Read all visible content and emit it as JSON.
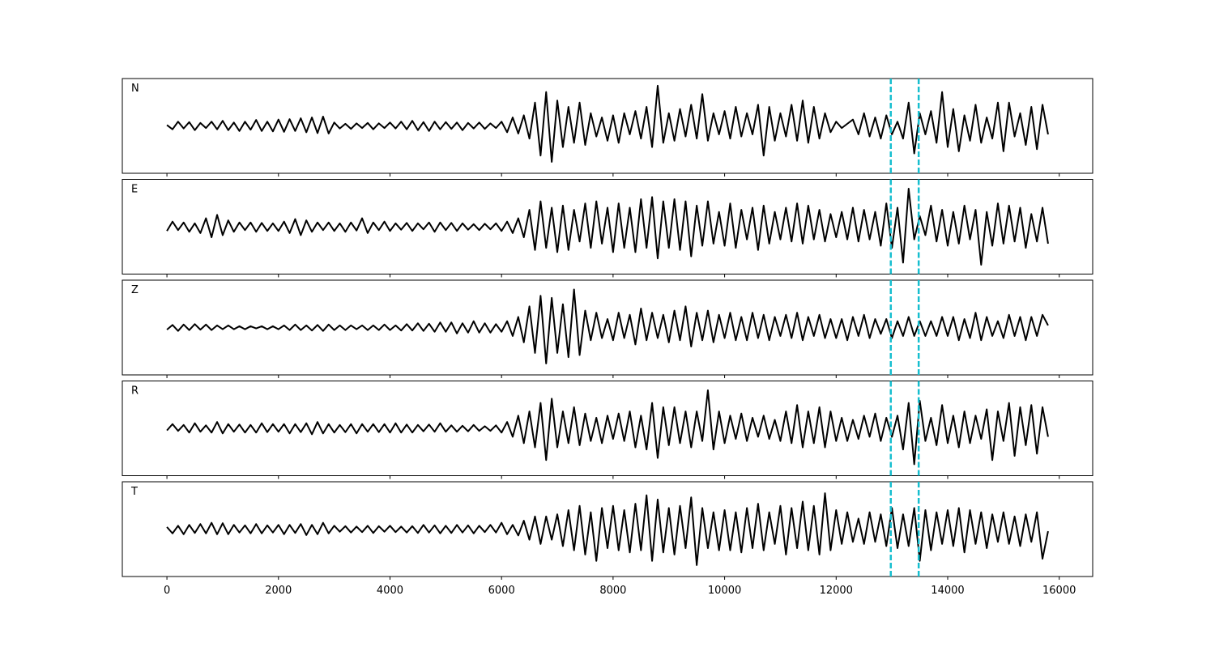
{
  "chart_data": {
    "type": "line",
    "layout": "stacked",
    "line_color": "#000000",
    "xlim": [
      -800,
      16600
    ],
    "xticks": [
      0,
      2000,
      4000,
      6000,
      8000,
      10000,
      12000,
      14000,
      16000
    ],
    "ylim": [
      -1.1,
      1.1
    ],
    "vlines": [
      12980,
      13480
    ],
    "vline_color": "#17becf",
    "vline_style": "dashed",
    "x": [
      0,
      100,
      200,
      300,
      400,
      500,
      600,
      700,
      800,
      900,
      1000,
      1100,
      1200,
      1300,
      1400,
      1500,
      1600,
      1700,
      1800,
      1900,
      2000,
      2100,
      2200,
      2300,
      2400,
      2500,
      2600,
      2700,
      2800,
      2900,
      3000,
      3100,
      3200,
      3300,
      3400,
      3500,
      3600,
      3700,
      3800,
      3900,
      4000,
      4100,
      4200,
      4300,
      4400,
      4500,
      4600,
      4700,
      4800,
      4900,
      5000,
      5100,
      5200,
      5300,
      5400,
      5500,
      5600,
      5700,
      5800,
      5900,
      6000,
      6100,
      6200,
      6300,
      6400,
      6500,
      6600,
      6700,
      6800,
      6900,
      7000,
      7100,
      7200,
      7300,
      7400,
      7500,
      7600,
      7700,
      7800,
      7900,
      8000,
      8100,
      8200,
      8300,
      8400,
      8500,
      8600,
      8700,
      8800,
      8900,
      9000,
      9100,
      9200,
      9300,
      9400,
      9500,
      9600,
      9700,
      9800,
      9900,
      10000,
      10100,
      10200,
      10300,
      10400,
      10500,
      10600,
      10700,
      10800,
      10900,
      11000,
      11100,
      11200,
      11300,
      11400,
      11500,
      11600,
      11700,
      11800,
      11900,
      12000,
      12100,
      12200,
      12300,
      12400,
      12500,
      12600,
      12700,
      12800,
      12900,
      13000,
      13100,
      13200,
      13300,
      13400,
      13500,
      13600,
      13700,
      13800,
      13900,
      14000,
      14100,
      14200,
      14300,
      14400,
      14500,
      14600,
      14700,
      14800,
      14900,
      15000,
      15100,
      15200,
      15300,
      15400,
      15500,
      15600,
      15700,
      15800
    ],
    "series": [
      {
        "name": "N",
        "values": [
          0.02,
          -0.08,
          0.1,
          -0.06,
          0.09,
          -0.1,
          0.07,
          -0.05,
          0.1,
          -0.08,
          0.12,
          -0.1,
          0.08,
          -0.12,
          0.1,
          -0.09,
          0.14,
          -0.12,
          0.1,
          -0.13,
          0.15,
          -0.14,
          0.16,
          -0.12,
          0.18,
          -0.15,
          0.2,
          -0.17,
          0.22,
          -0.18,
          0.08,
          -0.06,
          0.05,
          -0.07,
          0.06,
          -0.05,
          0.07,
          -0.08,
          0.06,
          -0.05,
          0.08,
          -0.06,
          0.1,
          -0.08,
          0.12,
          -0.1,
          0.09,
          -0.12,
          0.1,
          -0.08,
          0.09,
          -0.07,
          0.08,
          -0.1,
          0.07,
          -0.06,
          0.08,
          -0.07,
          0.06,
          -0.05,
          0.1,
          -0.15,
          0.2,
          -0.18,
          0.25,
          -0.3,
          0.55,
          -0.7,
          0.8,
          -0.85,
          0.6,
          -0.5,
          0.45,
          -0.4,
          0.55,
          -0.45,
          0.3,
          -0.25,
          0.2,
          -0.35,
          0.25,
          -0.4,
          0.3,
          -0.2,
          0.35,
          -0.3,
          0.45,
          -0.5,
          0.95,
          -0.4,
          0.3,
          -0.35,
          0.4,
          -0.25,
          0.5,
          -0.3,
          0.75,
          -0.35,
          0.3,
          -0.2,
          0.35,
          -0.3,
          0.45,
          -0.25,
          0.3,
          -0.2,
          0.5,
          -0.7,
          0.45,
          -0.35,
          0.3,
          -0.25,
          0.5,
          -0.35,
          0.6,
          -0.4,
          0.45,
          -0.3,
          0.3,
          -0.15,
          0.1,
          -0.05,
          0.05,
          0.15,
          -0.2,
          0.3,
          -0.25,
          0.2,
          -0.3,
          0.25,
          -0.2,
          0.1,
          -0.3,
          0.55,
          -0.65,
          0.3,
          -0.2,
          0.35,
          -0.4,
          0.8,
          -0.5,
          0.4,
          -0.6,
          0.25,
          -0.35,
          0.5,
          -0.4,
          0.2,
          -0.3,
          0.55,
          -0.6,
          0.55,
          -0.25,
          0.3,
          -0.45,
          0.45,
          -0.55,
          0.5,
          -0.2
        ]
      },
      {
        "name": "E",
        "values": [
          -0.1,
          0.12,
          -0.08,
          0.1,
          -0.12,
          0.08,
          -0.15,
          0.2,
          -0.25,
          0.28,
          -0.2,
          0.15,
          -0.12,
          0.1,
          -0.08,
          0.1,
          -0.12,
          0.09,
          -0.1,
          0.08,
          -0.1,
          0.12,
          -0.15,
          0.18,
          -0.2,
          0.15,
          -0.12,
          0.1,
          -0.08,
          0.1,
          -0.1,
          0.08,
          -0.12,
          0.1,
          -0.09,
          0.2,
          -0.15,
          0.1,
          -0.08,
          0.12,
          -0.1,
          0.08,
          -0.07,
          0.09,
          -0.1,
          0.08,
          -0.06,
          0.1,
          -0.12,
          0.1,
          -0.08,
          0.09,
          -0.1,
          0.08,
          -0.07,
          0.06,
          -0.08,
          0.07,
          -0.06,
          0.08,
          -0.1,
          0.12,
          -0.15,
          0.2,
          -0.25,
          0.4,
          -0.55,
          0.6,
          -0.5,
          0.45,
          -0.6,
          0.5,
          -0.55,
          0.4,
          -0.35,
          0.55,
          -0.5,
          0.6,
          -0.4,
          0.45,
          -0.6,
          0.55,
          -0.5,
          0.45,
          -0.6,
          0.65,
          -0.5,
          0.7,
          -0.75,
          0.6,
          -0.5,
          0.65,
          -0.55,
          0.6,
          -0.7,
          0.5,
          -0.45,
          0.6,
          -0.4,
          0.35,
          -0.45,
          0.55,
          -0.5,
          0.4,
          -0.3,
          0.45,
          -0.55,
          0.5,
          -0.4,
          0.35,
          -0.3,
          0.45,
          -0.35,
          0.55,
          -0.4,
          0.5,
          -0.3,
          0.4,
          -0.35,
          0.3,
          -0.25,
          0.35,
          -0.3,
          0.45,
          -0.35,
          0.4,
          -0.3,
          0.35,
          -0.45,
          0.55,
          -0.5,
          0.45,
          -0.85,
          0.9,
          -0.3,
          0.25,
          -0.2,
          0.5,
          -0.35,
          0.4,
          -0.45,
          0.35,
          -0.4,
          0.5,
          -0.3,
          0.4,
          -0.9,
          0.35,
          -0.45,
          0.55,
          -0.4,
          0.5,
          -0.35,
          0.45,
          -0.5,
          0.3,
          -0.35,
          0.45,
          -0.4
        ]
      },
      {
        "name": "Z",
        "values": [
          -0.05,
          0.06,
          -0.08,
          0.07,
          -0.06,
          0.08,
          -0.05,
          0.07,
          -0.06,
          0.05,
          -0.04,
          0.05,
          -0.04,
          0.03,
          -0.04,
          0.03,
          -0.02,
          0.03,
          -0.04,
          0.03,
          -0.04,
          0.05,
          -0.06,
          0.07,
          -0.06,
          0.05,
          -0.07,
          0.06,
          -0.08,
          0.07,
          -0.06,
          0.05,
          -0.06,
          0.05,
          -0.04,
          0.05,
          -0.06,
          0.05,
          -0.06,
          0.07,
          -0.06,
          0.05,
          -0.07,
          0.08,
          -0.07,
          0.1,
          -0.08,
          0.09,
          -0.1,
          0.12,
          -0.1,
          0.12,
          -0.14,
          0.1,
          -0.12,
          0.15,
          -0.12,
          0.1,
          -0.12,
          0.08,
          -0.1,
          0.15,
          -0.2,
          0.25,
          -0.35,
          0.5,
          -0.6,
          0.75,
          -0.85,
          0.7,
          -0.6,
          0.55,
          -0.7,
          0.9,
          -0.65,
          0.4,
          -0.3,
          0.35,
          -0.25,
          0.2,
          -0.3,
          0.35,
          -0.25,
          0.3,
          -0.4,
          0.45,
          -0.3,
          0.35,
          -0.25,
          0.3,
          -0.35,
          0.4,
          -0.3,
          0.5,
          -0.45,
          0.35,
          -0.3,
          0.4,
          -0.35,
          0.3,
          -0.25,
          0.35,
          -0.3,
          0.25,
          -0.3,
          0.35,
          -0.25,
          0.3,
          -0.3,
          0.25,
          -0.2,
          0.3,
          -0.25,
          0.35,
          -0.3,
          0.25,
          -0.2,
          0.3,
          -0.25,
          0.2,
          -0.25,
          0.2,
          -0.3,
          0.25,
          -0.2,
          0.3,
          -0.25,
          0.2,
          -0.15,
          0.2,
          -0.25,
          0.15,
          -0.2,
          0.25,
          -0.2,
          0.15,
          -0.2,
          0.15,
          -0.2,
          0.25,
          -0.2,
          0.25,
          -0.3,
          0.2,
          -0.25,
          0.35,
          -0.3,
          0.25,
          -0.2,
          0.15,
          -0.25,
          0.3,
          -0.2,
          0.25,
          -0.3,
          0.25,
          -0.2,
          0.3,
          0.05
        ]
      },
      {
        "name": "R",
        "values": [
          -0.05,
          0.1,
          -0.06,
          0.08,
          -0.1,
          0.12,
          -0.08,
          0.07,
          -0.1,
          0.15,
          -0.12,
          0.1,
          -0.08,
          0.09,
          -0.1,
          0.08,
          -0.1,
          0.12,
          -0.09,
          0.1,
          -0.08,
          0.1,
          -0.12,
          0.1,
          -0.09,
          0.12,
          -0.14,
          0.15,
          -0.12,
          0.1,
          -0.1,
          0.08,
          -0.09,
          0.1,
          -0.12,
          0.1,
          -0.08,
          0.1,
          -0.09,
          0.1,
          -0.1,
          0.12,
          -0.1,
          0.09,
          -0.1,
          0.08,
          -0.07,
          0.09,
          -0.08,
          0.12,
          -0.08,
          0.07,
          -0.08,
          0.06,
          -0.07,
          0.08,
          -0.06,
          0.05,
          -0.06,
          0.07,
          -0.1,
          0.15,
          -0.2,
          0.3,
          -0.35,
          0.4,
          -0.45,
          0.6,
          -0.75,
          0.7,
          -0.45,
          0.4,
          -0.35,
          0.5,
          -0.4,
          0.35,
          -0.3,
          0.25,
          -0.35,
          0.3,
          -0.25,
          0.35,
          -0.3,
          0.4,
          -0.45,
          0.3,
          -0.5,
          0.6,
          -0.7,
          0.5,
          -0.4,
          0.5,
          -0.35,
          0.4,
          -0.45,
          0.4,
          -0.3,
          0.9,
          -0.5,
          0.4,
          -0.35,
          0.3,
          -0.25,
          0.35,
          -0.3,
          0.25,
          -0.2,
          0.3,
          -0.25,
          0.2,
          -0.3,
          0.4,
          -0.35,
          0.55,
          -0.45,
          0.4,
          -0.35,
          0.5,
          -0.45,
          0.4,
          -0.3,
          0.25,
          -0.3,
          0.2,
          -0.25,
          0.3,
          -0.2,
          0.35,
          -0.3,
          0.25,
          -0.2,
          0.3,
          -0.5,
          0.6,
          -0.85,
          0.65,
          -0.3,
          0.25,
          -0.4,
          0.55,
          -0.35,
          0.3,
          -0.45,
          0.4,
          -0.35,
          0.3,
          -0.25,
          0.45,
          -0.75,
          0.4,
          -0.3,
          0.6,
          -0.65,
          0.5,
          -0.4,
          0.55,
          -0.6,
          0.5,
          -0.2
        ]
      },
      {
        "name": "T",
        "values": [
          0.05,
          -0.1,
          0.08,
          -0.12,
          0.1,
          -0.09,
          0.12,
          -0.1,
          0.15,
          -0.12,
          0.14,
          -0.12,
          0.1,
          -0.08,
          0.09,
          -0.1,
          0.12,
          -0.1,
          0.09,
          -0.08,
          0.1,
          -0.12,
          0.1,
          -0.09,
          0.12,
          -0.14,
          0.1,
          -0.12,
          0.15,
          -0.1,
          0.08,
          -0.06,
          0.07,
          -0.08,
          0.06,
          -0.07,
          0.08,
          -0.09,
          0.07,
          -0.06,
          0.08,
          -0.07,
          0.06,
          -0.08,
          0.07,
          -0.09,
          0.1,
          -0.08,
          0.09,
          -0.1,
          0.08,
          -0.09,
          0.1,
          -0.08,
          0.09,
          -0.1,
          0.08,
          -0.07,
          0.1,
          -0.08,
          0.15,
          -0.12,
          0.1,
          -0.15,
          0.2,
          -0.25,
          0.3,
          -0.35,
          0.3,
          -0.25,
          0.35,
          -0.4,
          0.45,
          -0.5,
          0.55,
          -0.6,
          0.4,
          -0.75,
          0.5,
          -0.45,
          0.55,
          -0.5,
          0.45,
          -0.55,
          0.6,
          -0.5,
          0.8,
          -0.75,
          0.7,
          -0.55,
          0.5,
          -0.6,
          0.55,
          -0.45,
          0.75,
          -0.85,
          0.5,
          -0.45,
          0.4,
          -0.5,
          0.45,
          -0.5,
          0.4,
          -0.55,
          0.5,
          -0.45,
          0.6,
          -0.5,
          0.4,
          -0.35,
          0.55,
          -0.6,
          0.5,
          -0.45,
          0.65,
          -0.5,
          0.55,
          -0.6,
          0.85,
          -0.5,
          0.45,
          -0.35,
          0.4,
          -0.3,
          0.25,
          -0.35,
          0.4,
          -0.3,
          0.35,
          -0.4,
          0.5,
          -0.45,
          0.35,
          -0.4,
          0.5,
          -0.75,
          0.45,
          -0.5,
          0.4,
          -0.35,
          0.45,
          -0.4,
          0.5,
          -0.55,
          0.45,
          -0.35,
          0.4,
          -0.45,
          0.35,
          -0.3,
          0.4,
          -0.35,
          0.3,
          -0.4,
          0.35,
          -0.3,
          0.4,
          -0.7,
          -0.05
        ]
      }
    ]
  }
}
